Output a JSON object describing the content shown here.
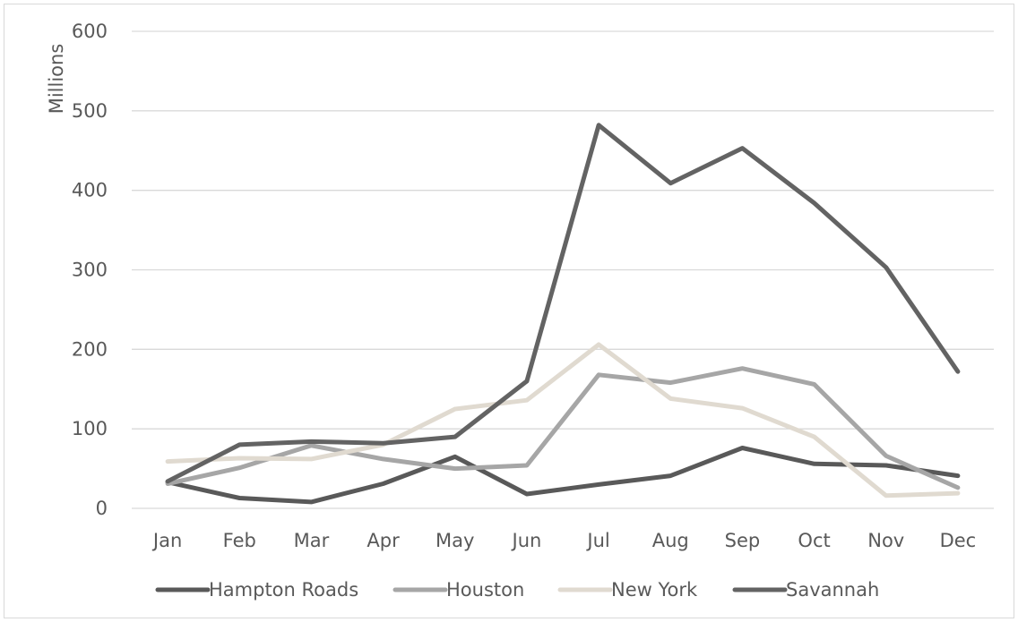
{
  "chart_data": {
    "type": "line",
    "title": "",
    "xlabel": "",
    "ylabel": "Millions",
    "ylim": [
      0,
      600
    ],
    "yticks": [
      0,
      100,
      200,
      300,
      400,
      500,
      600
    ],
    "grid": true,
    "legend_position": "bottom",
    "categories": [
      "Jan",
      "Feb",
      "Mar",
      "Apr",
      "May",
      "Jun",
      "Jul",
      "Aug",
      "Sep",
      "Oct",
      "Nov",
      "Dec"
    ],
    "series": [
      {
        "name": "Hampton Roads",
        "color": "#595959",
        "values": [
          33,
          13,
          8,
          31,
          65,
          18,
          30,
          41,
          76,
          56,
          54,
          41
        ]
      },
      {
        "name": "Houston",
        "color": "#a6a6a6",
        "values": [
          31,
          51,
          79,
          62,
          50,
          54,
          168,
          158,
          176,
          156,
          66,
          26
        ]
      },
      {
        "name": "New York",
        "color": "#e0dad0",
        "values": [
          59,
          63,
          62,
          80,
          125,
          136,
          206,
          138,
          126,
          90,
          16,
          19
        ]
      },
      {
        "name": "Savannah",
        "color": "#636363",
        "values": [
          34,
          80,
          84,
          82,
          90,
          160,
          482,
          409,
          453,
          384,
          303,
          172
        ]
      }
    ]
  }
}
